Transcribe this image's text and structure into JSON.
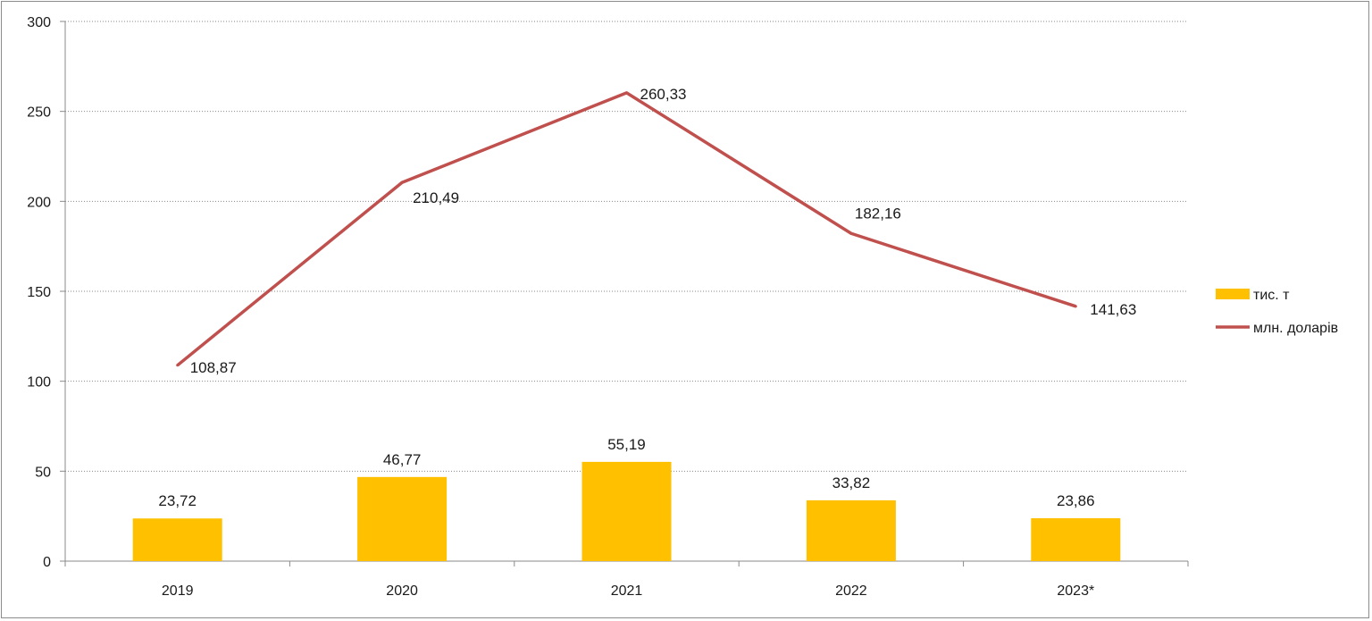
{
  "chart_data": {
    "type": "bar",
    "categories": [
      "2019",
      "2020",
      "2021",
      "2022",
      "2023*"
    ],
    "series": [
      {
        "name": "тис. т",
        "type": "bar",
        "color": "#ffc000",
        "values": [
          23.72,
          46.77,
          55.19,
          33.82,
          23.86
        ],
        "labels": [
          "23,72",
          "46,77",
          "55,19",
          "33,82",
          "23,86"
        ]
      },
      {
        "name": "млн. доларів",
        "type": "line",
        "color": "#c0504d",
        "values": [
          108.87,
          210.49,
          260.33,
          182.16,
          141.63
        ],
        "labels": [
          "108,87",
          "210,49",
          "260,33",
          "182,16",
          "141,63"
        ]
      }
    ],
    "ylim": [
      0,
      300
    ],
    "yticks": [
      "0",
      "50",
      "100",
      "150",
      "200",
      "250",
      "300"
    ],
    "grid": true,
    "legend_position": "right"
  }
}
